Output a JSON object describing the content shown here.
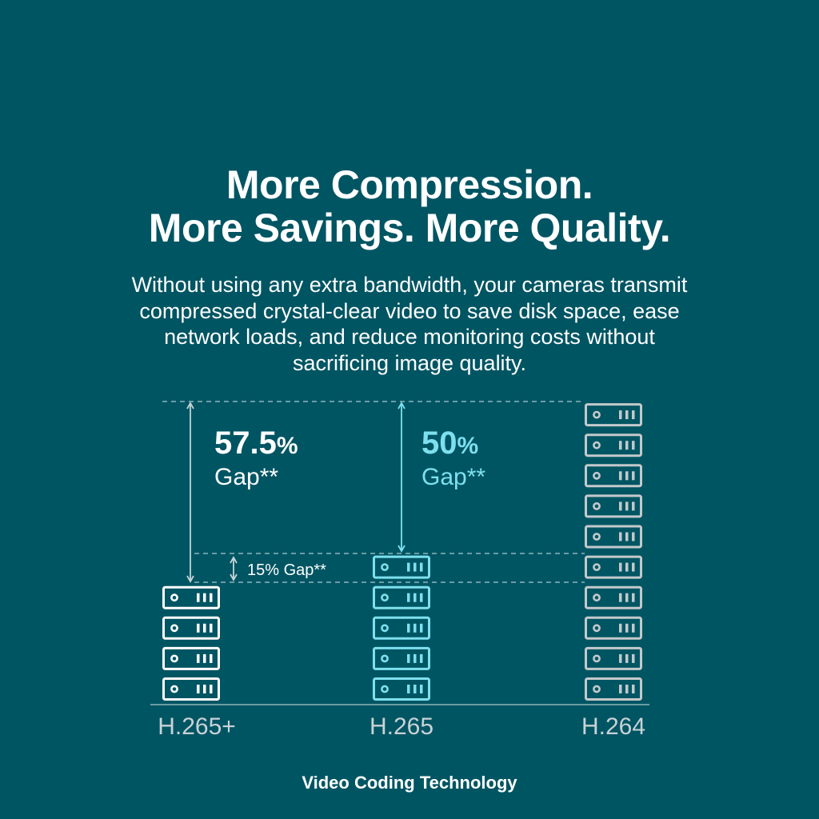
{
  "headline": {
    "line1": "More Compression.",
    "line2": "More Savings. More Quality."
  },
  "subtitle": {
    "line1": "Without using any extra bandwidth, your cameras transmit",
    "line2": "compressed crystal-clear video to save disk space, ease",
    "line3": "network loads, and reduce monitoring costs without",
    "line4": "sacrificing image quality."
  },
  "comparison": {
    "caption": "Video Coding Technology",
    "colors": {
      "background": "#005563",
      "h265plus": "#ffffff",
      "h265": "#7ee0ee",
      "h264": "#c4c9cb",
      "guide": "#8fb3ba"
    },
    "codecs": [
      {
        "name": "H.265+",
        "server_units": 4,
        "icon": "server-rack-icon"
      },
      {
        "name": "H.265",
        "server_units": 5,
        "icon": "server-rack-icon"
      },
      {
        "name": "H.264",
        "server_units": 10,
        "icon": "server-rack-icon"
      }
    ],
    "gaps": {
      "h265plus_vs_h264": {
        "value": "57.5",
        "unit": "%",
        "label": "Gap**"
      },
      "h265_vs_h264": {
        "value": "50",
        "unit": "%",
        "label": "Gap**"
      },
      "h265plus_vs_h265": {
        "label": "15% Gap**"
      }
    }
  }
}
